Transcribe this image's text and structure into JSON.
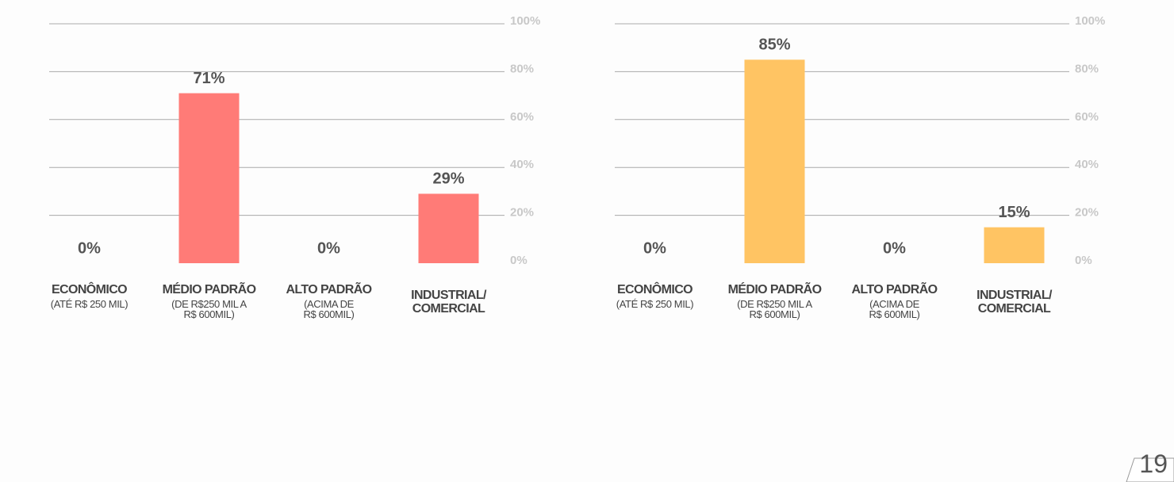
{
  "chart_data": [
    {
      "type": "bar",
      "color": "#ff7b77",
      "categories": [
        "ECONÔMICO",
        "MÉDIO PADRÃO",
        "ALTO PADRÃO",
        "INDUSTRIAL/\nCOMERCIAL"
      ],
      "category_notes": [
        "(ATÉ R$ 250 MIL)",
        "(DE R$250 MIL A\nR$ 600MIL)",
        "(ACIMA DE\nR$ 600MIL)",
        null
      ],
      "values": [
        0,
        71,
        0,
        29
      ],
      "value_labels": [
        "0%",
        "71%",
        "0%",
        "29%"
      ],
      "ylim": [
        0,
        100
      ],
      "yticks": [
        {
          "value": 0,
          "label": "0%"
        },
        {
          "value": 20,
          "label": "20%"
        },
        {
          "value": 40,
          "label": "40%"
        },
        {
          "value": 60,
          "label": "60%"
        },
        {
          "value": 80,
          "label": "80%"
        },
        {
          "value": 100,
          "label": "100%"
        }
      ],
      "grid": true
    },
    {
      "type": "bar",
      "color": "#ffc463",
      "categories": [
        "ECONÔMICO",
        "MÉDIO PADRÃO",
        "ALTO PADRÃO",
        "INDUSTRIAL/\nCOMERCIAL"
      ],
      "category_notes": [
        "(ATÉ R$ 250 MIL)",
        "(DE R$250 MIL A\nR$ 600MIL)",
        "(ACIMA DE\nR$ 600MIL)",
        null
      ],
      "values": [
        0,
        85,
        0,
        15
      ],
      "value_labels": [
        "0%",
        "85%",
        "0%",
        "15%"
      ],
      "ylim": [
        0,
        100
      ],
      "yticks": [
        {
          "value": 0,
          "label": "0%"
        },
        {
          "value": 20,
          "label": "20%"
        },
        {
          "value": 40,
          "label": "40%"
        },
        {
          "value": 60,
          "label": "60%"
        },
        {
          "value": 80,
          "label": "80%"
        },
        {
          "value": 100,
          "label": "100%"
        }
      ],
      "grid": true
    }
  ],
  "page_number": "19"
}
